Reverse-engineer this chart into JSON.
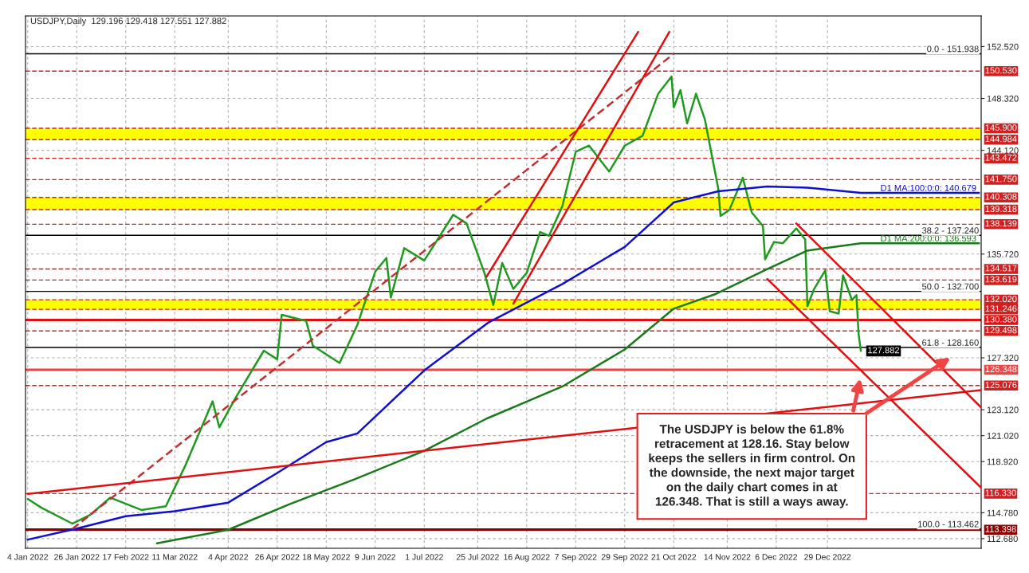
{
  "chart_data": {
    "type": "line",
    "title": "USDJPY,Daily  129.196 129.418 127.551 127.882",
    "series": [
      {
        "color": "#1f9a1f",
        "x": [
          "2022-01-04",
          "2022-01-10",
          "2022-01-24",
          "2022-02-01",
          "2022-02-10",
          "2022-02-24",
          "2022-03-07",
          "2022-03-16",
          "2022-03-28",
          "2022-03-31",
          "2022-04-08",
          "2022-04-20",
          "2022-04-26",
          "2022-04-28",
          "2022-05-09",
          "2022-05-12",
          "2022-05-24",
          "2022-06-01",
          "2022-06-09",
          "2022-06-14",
          "2022-06-16",
          "2022-06-22",
          "2022-07-01",
          "2022-07-14",
          "2022-07-20",
          "2022-07-28",
          "2022-08-01",
          "2022-08-05",
          "2022-08-10",
          "2022-08-16",
          "2022-08-22",
          "2022-08-26",
          "2022-09-01",
          "2022-09-07",
          "2022-09-13",
          "2022-09-22",
          "2022-09-29",
          "2022-10-07",
          "2022-10-14",
          "2022-10-20",
          "2022-10-21",
          "2022-10-24",
          "2022-10-27",
          "2022-10-31",
          "2022-11-04",
          "2022-11-10",
          "2022-11-11",
          "2022-11-15",
          "2022-11-21",
          "2022-11-25",
          "2022-11-30",
          "2022-12-01",
          "2022-12-05",
          "2022-12-09",
          "2022-12-15",
          "2022-12-19",
          "2022-12-20",
          "2022-12-23",
          "2022-12-28",
          "2022-12-30",
          "2023-01-03",
          "2023-01-05",
          "2023-01-09",
          "2023-01-11",
          "2023-01-12",
          "2023-01-13"
        ],
        "values": [
          115.9,
          115.2,
          113.9,
          114.6,
          116.0,
          115.0,
          115.3,
          118.7,
          123.8,
          121.7,
          124.3,
          127.9,
          127.2,
          130.8,
          130.3,
          128.3,
          126.9,
          130.0,
          134.3,
          135.4,
          132.2,
          136.2,
          135.2,
          138.9,
          138.2,
          134.2,
          131.6,
          135.0,
          132.9,
          134.2,
          137.5,
          137.2,
          139.6,
          144.0,
          144.5,
          142.4,
          144.5,
          145.3,
          148.7,
          150.1,
          147.6,
          149.0,
          146.3,
          148.7,
          146.6,
          141.0,
          138.8,
          139.3,
          141.9,
          139.1,
          138.0,
          135.3,
          136.7,
          136.6,
          137.8,
          136.9,
          131.5,
          132.9,
          134.4,
          131.1,
          130.9,
          134.0,
          132.0,
          132.4,
          129.2,
          127.882
        ],
        "value_labels": [
          null,
          null,
          null,
          null,
          null,
          null,
          null,
          null,
          null,
          null,
          null,
          null,
          null,
          null,
          null,
          null,
          null,
          null,
          null,
          null,
          null,
          null,
          null,
          null,
          null,
          null,
          null,
          null,
          null,
          null,
          null,
          null,
          null,
          null,
          null,
          null,
          null,
          null,
          null,
          null,
          null,
          null,
          null,
          null,
          null,
          null,
          null,
          null,
          null,
          null,
          null,
          null,
          null,
          null,
          null,
          null,
          null,
          null,
          null,
          null,
          null,
          null,
          null,
          null,
          null,
          "127.882"
        ]
      },
      {
        "name": "D1 MA:100:0:0: 140.679",
        "color": "#1010d0",
        "x": [
          "2022-01-04",
          "2022-01-26",
          "2022-02-17",
          "2022-03-11",
          "2022-04-04",
          "2022-04-26",
          "2022-05-18",
          "2022-06-01",
          "2022-07-01",
          "2022-07-30",
          "2022-09-01",
          "2022-09-29",
          "2022-10-21",
          "2022-11-10",
          "2022-12-02",
          "2022-12-20",
          "2023-01-13",
          "2023-03-07"
        ],
        "values": [
          112.6,
          113.5,
          114.5,
          114.9,
          115.6,
          118.0,
          120.5,
          121.2,
          126.3,
          130.2,
          133.3,
          136.3,
          139.9,
          140.8,
          141.2,
          141.1,
          140.679,
          140.679
        ]
      },
      {
        "name": "D1 MA:200:0:0: 136.593",
        "color": "#1a7a1a",
        "x": [
          "2022-03-03",
          "2022-04-04",
          "2022-05-02",
          "2022-05-31",
          "2022-07-01",
          "2022-07-29",
          "2022-09-01",
          "2022-09-29",
          "2022-10-21",
          "2022-11-09",
          "2022-12-02",
          "2022-12-20",
          "2023-01-13",
          "2023-03-07"
        ],
        "values": [
          112.3,
          113.4,
          115.5,
          117.5,
          119.8,
          122.4,
          125.0,
          128.0,
          131.3,
          132.5,
          134.5,
          136.0,
          136.593,
          136.593
        ]
      },
      {
        "color": "#c03030",
        "line_style": "dashed",
        "x": [
          "2022-01-24",
          "2022-10-21"
        ],
        "values": [
          113.462,
          151.938
        ]
      },
      {
        "color": "#e01010",
        "x": [
          "2022-01-04",
          "2023-03-08"
        ],
        "values": [
          116.3,
          124.7
        ]
      },
      {
        "color": "#e01010",
        "x": [
          "2022-07-29",
          "2022-10-05"
        ],
        "values": [
          133.9,
          153.7
        ]
      },
      {
        "color": "#e01010",
        "x": [
          "2022-08-10",
          "2022-10-19"
        ],
        "values": [
          131.7,
          153.7
        ]
      },
      {
        "color": "#e01010",
        "x": [
          "2022-12-15",
          "2023-03-08"
        ],
        "values": [
          138.2,
          123.3
        ]
      },
      {
        "color": "#e01010",
        "x": [
          "2022-12-02",
          "2023-03-08"
        ],
        "values": [
          133.7,
          116.8
        ]
      }
    ],
    "bands": [
      {
        "axis": "y",
        "from": 144.984,
        "to": 145.9,
        "color": "#ffff00"
      },
      {
        "axis": "y",
        "from": 139.318,
        "to": 140.308,
        "color": "#ffff00"
      },
      {
        "axis": "y",
        "from": 131.246,
        "to": 132.02,
        "color": "#ffff00"
      }
    ],
    "ref_lines": [
      {
        "axis": "y",
        "value": 151.938,
        "color": "#000000",
        "line_style": "solid"
      },
      {
        "axis": "y",
        "value": 137.24,
        "color": "#000000",
        "line_style": "solid"
      },
      {
        "axis": "y",
        "value": 132.7,
        "color": "#000000",
        "line_style": "solid"
      },
      {
        "axis": "y",
        "value": 128.16,
        "color": "#000000",
        "line_style": "solid"
      },
      {
        "axis": "y",
        "value": 113.462,
        "color": "#000000",
        "line_style": "solid"
      },
      {
        "axis": "y",
        "value": 150.53,
        "label": "150.530",
        "color": "#d02020",
        "line_style": "dashed"
      },
      {
        "axis": "y",
        "value": 145.9,
        "label": "145.900",
        "color": "#d02020",
        "line_style": "dashed"
      },
      {
        "axis": "y",
        "value": 144.984,
        "label": "144.984",
        "color": "#d02020",
        "line_style": "dashed"
      },
      {
        "axis": "y",
        "value": 143.472,
        "label": "143.472",
        "color": "#d02020",
        "line_style": "dashed"
      },
      {
        "axis": "y",
        "value": 141.75,
        "label": "141.750",
        "color": "#d02020",
        "line_style": "dashed"
      },
      {
        "axis": "y",
        "value": 140.308,
        "label": "140.308",
        "color": "#d02020",
        "line_style": "dashed"
      },
      {
        "axis": "y",
        "value": 139.318,
        "label": "139.318",
        "color": "#d02020",
        "line_style": "dashed"
      },
      {
        "axis": "y",
        "value": 138.139,
        "label": "138.139",
        "color": "#d02020",
        "line_style": "dashed"
      },
      {
        "axis": "y",
        "value": 134.517,
        "label": "134.517",
        "color": "#d02020",
        "line_style": "dashed"
      },
      {
        "axis": "y",
        "value": 133.619,
        "label": "133.619",
        "color": "#d02020",
        "line_style": "dashed"
      },
      {
        "axis": "y",
        "value": 132.02,
        "label": "132.020",
        "color": "#d02020",
        "line_style": "dashed"
      },
      {
        "axis": "y",
        "value": 131.246,
        "label": "131.246",
        "color": "#d02020",
        "line_style": "dashed"
      },
      {
        "axis": "y",
        "value": 130.38,
        "label": "130.380",
        "color": "#e01010",
        "line_style": "solid"
      },
      {
        "axis": "y",
        "value": 129.498,
        "label": "129.498",
        "color": "#d02020",
        "line_style": "dashed"
      },
      {
        "axis": "y",
        "value": 126.348,
        "label": "126.348",
        "color": "#f04545",
        "line_style": "solid"
      },
      {
        "axis": "y",
        "value": 125.076,
        "label": "125.076",
        "color": "#d02020",
        "line_style": "dashed"
      },
      {
        "axis": "y",
        "value": 116.33,
        "label": "116.330",
        "color": "#d02020",
        "line_style": "dashed"
      },
      {
        "axis": "y",
        "value": 113.398,
        "label": "113.398",
        "color": "#900000",
        "line_style": "solid"
      }
    ],
    "annotations": [
      {
        "text": "0.0 - 151.938",
        "x": "2023-03-07",
        "y": 151.938
      },
      {
        "text": "38.2 - 137.240",
        "x": "2023-03-07",
        "y": 137.24
      },
      {
        "text": "50.0 - 132.700",
        "x": "2023-03-07",
        "y": 132.7
      },
      {
        "text": "61.8 - 128.160",
        "x": "2023-03-07",
        "y": 128.16
      },
      {
        "text": "100.0 - 113.462",
        "x": "2023-03-07",
        "y": 113.462
      },
      "The USDJPY is below the 61.8%\nretracement at 128.16. Stay below\nkeeps the sellers in firm control. On\nthe downside, the next major target\non the daily chart comes in at\n126.348. That is still a ways away."
    ],
    "xlim": [
      "2022-01-03",
      "2023-03-08"
    ],
    "xticks": [
      {
        "value": "2022-01-04",
        "label": "4 Jan 2022"
      },
      {
        "value": "2022-01-26",
        "label": "26 Jan 2022"
      },
      {
        "value": "2022-02-17",
        "label": "17 Feb 2022"
      },
      {
        "value": "2022-03-11",
        "label": "11 Mar 2022"
      },
      {
        "value": "2022-04-04",
        "label": "4 Apr 2022"
      },
      {
        "value": "2022-04-26",
        "label": "26 Apr 2022"
      },
      {
        "value": "2022-05-18",
        "label": "18 May 2022"
      },
      {
        "value": "2022-06-09",
        "label": "9 Jun 2022"
      },
      {
        "value": "2022-07-01",
        "label": "1 Jul 2022"
      },
      {
        "value": "2022-07-25",
        "label": "25 Jul 2022"
      },
      {
        "value": "2022-08-16",
        "label": "16 Aug 2022"
      },
      {
        "value": "2022-09-07",
        "label": "7 Sep 2022"
      },
      {
        "value": "2022-09-29",
        "label": "29 Sep 2022"
      },
      {
        "value": "2022-10-21",
        "label": "21 Oct 2022"
      },
      {
        "value": "2022-11-14",
        "label": "14 Nov 2022"
      },
      {
        "value": "2022-12-06",
        "label": "6 Dec 2022"
      },
      {
        "value": "2022-12-29",
        "label": "29 Dec 2022"
      }
    ],
    "ylim": [
      111.9,
      155.0
    ],
    "yticks": [
      {
        "value": 152.52,
        "label": "152.520"
      },
      {
        "value": 148.32,
        "label": "148.320"
      },
      {
        "value": 144.12,
        "label": "144.120"
      },
      {
        "value": 135.72,
        "label": "135.720"
      },
      {
        "value": 127.32,
        "label": "127.320"
      },
      {
        "value": 123.12,
        "label": "123.120"
      },
      {
        "value": 121.02,
        "label": "121.020"
      },
      {
        "value": 118.92,
        "label": "118.920"
      },
      {
        "value": 114.78,
        "label": "114.780"
      },
      {
        "value": 112.68,
        "label": "112.680"
      }
    ],
    "grid": true
  }
}
